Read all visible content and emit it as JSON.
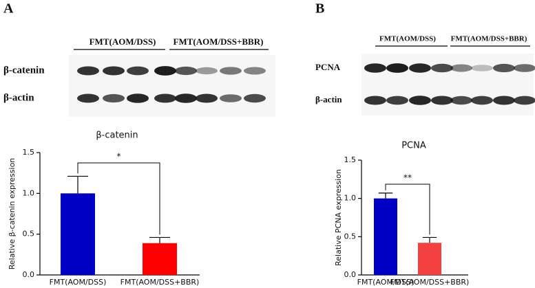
{
  "panels": [
    {
      "label": "A",
      "groups": [
        "FMT(AOM/DSS)",
        "FMT(AOM/DSS+BBR)"
      ],
      "rows": [
        "β-catenin",
        "β-actin"
      ]
    },
    {
      "label": "B",
      "groups": [
        "FMT(AOM/DSS)",
        "FMT(AOM/DSS+BBR)"
      ],
      "rows": [
        "PCNA",
        "β-actin"
      ]
    }
  ],
  "chart_data": [
    {
      "type": "bar",
      "title": "β-catenin",
      "y_label": "Relative β-catenin expression",
      "categories": [
        "FMT(AOM/DSS)",
        "FMT(AOM/DSS+BBR)"
      ],
      "values": [
        1.0,
        0.39
      ],
      "errors": [
        0.21,
        0.07
      ],
      "colors": [
        "#0000c4",
        "#ff0000"
      ],
      "ylim": [
        0,
        1.5
      ],
      "yticks": [
        {
          "value": 0,
          "label": "0.0"
        },
        {
          "value": 0.5,
          "label": "0.5"
        },
        {
          "value": 1,
          "label": "1.0"
        },
        {
          "value": 1.5,
          "label": "1.5"
        }
      ],
      "annotation": "*"
    },
    {
      "type": "bar",
      "title": "PCNA",
      "y_label": "Relative PCNA expression",
      "categories": [
        "FMT(AOM/DSS)",
        "FMT(AOM/DSS+BBR)"
      ],
      "values": [
        1.0,
        0.42
      ],
      "errors": [
        0.07,
        0.07
      ],
      "colors": [
        "#0000c4",
        "#f44040"
      ],
      "ylim": [
        0,
        1.5
      ],
      "yticks": [
        {
          "value": 0,
          "label": "0.0"
        },
        {
          "value": 0.5,
          "label": "0.5"
        },
        {
          "value": 1,
          "label": "1.0"
        },
        {
          "value": 1.5,
          "label": "1.5"
        }
      ],
      "annotation": "**"
    }
  ]
}
